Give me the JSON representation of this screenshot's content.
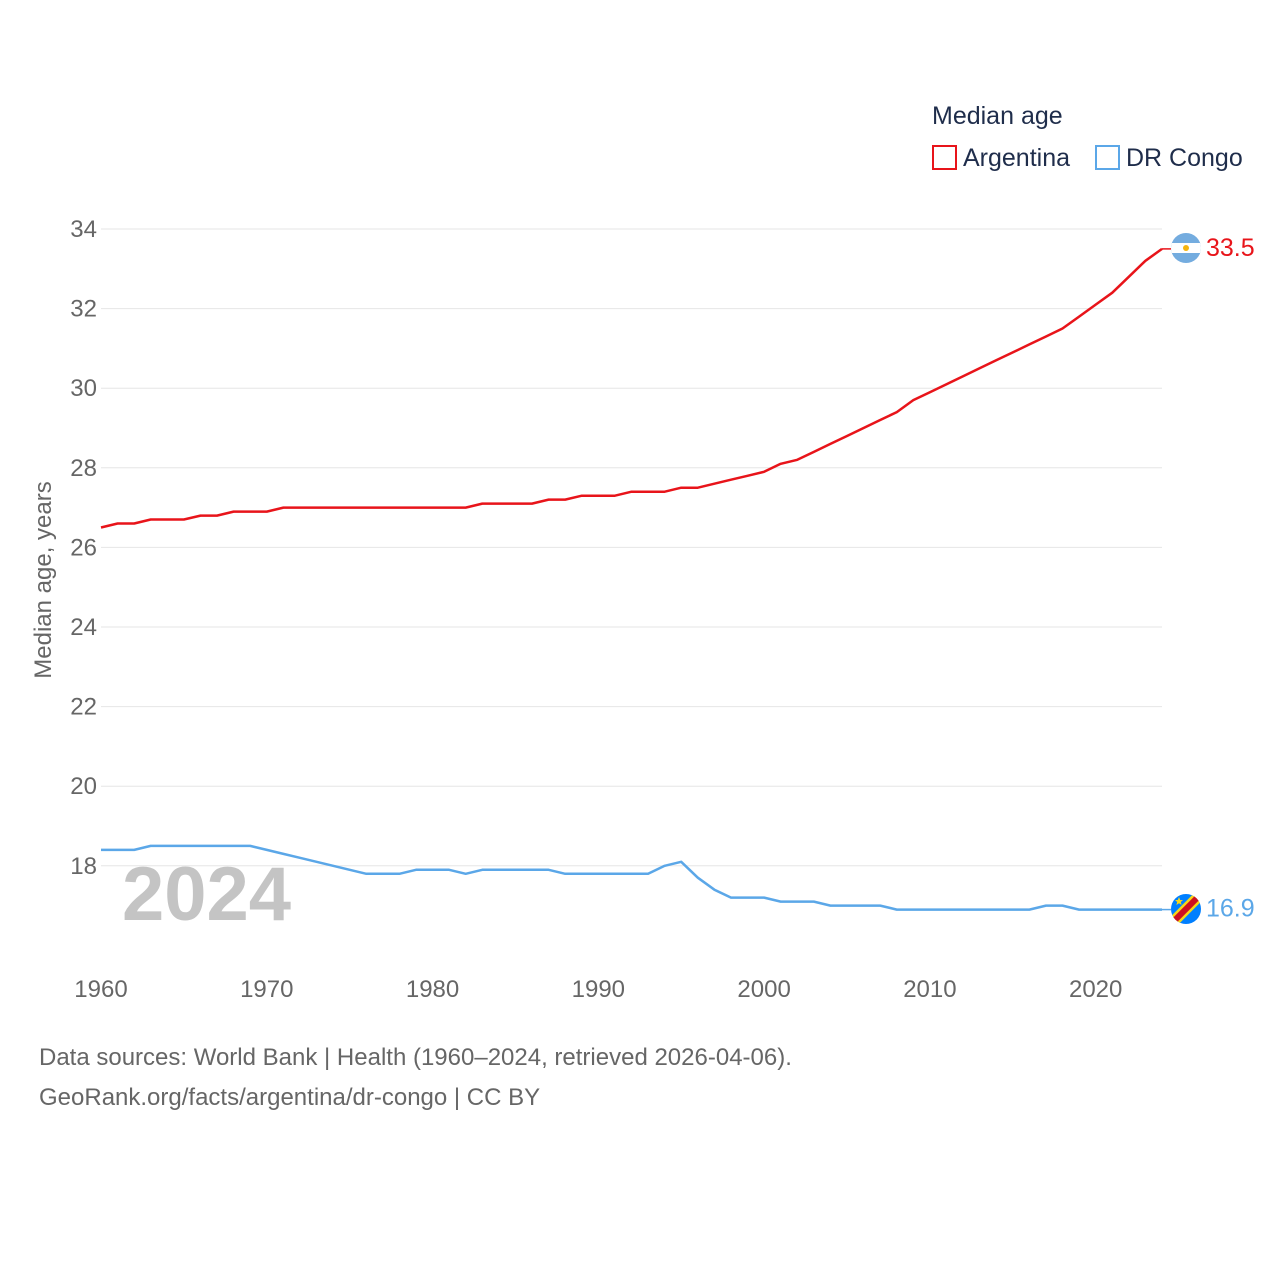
{
  "chart_data": {
    "type": "line",
    "title": "",
    "xlabel": "",
    "ylabel": "Median age, years",
    "legend_title": "Median age",
    "legend_position": "top-right",
    "xlim": [
      1960,
      2024
    ],
    "ylim": [
      16,
      34.5
    ],
    "x_ticks": [
      "1960",
      "1970",
      "1980",
      "1990",
      "2000",
      "2010",
      "2020"
    ],
    "y_ticks": [
      "18",
      "20",
      "22",
      "24",
      "26",
      "28",
      "30",
      "32",
      "34"
    ],
    "year_label": "2024",
    "x": [
      1960,
      1961,
      1962,
      1963,
      1964,
      1965,
      1966,
      1967,
      1968,
      1969,
      1970,
      1971,
      1972,
      1973,
      1974,
      1975,
      1976,
      1977,
      1978,
      1979,
      1980,
      1981,
      1982,
      1983,
      1984,
      1985,
      1986,
      1987,
      1988,
      1989,
      1990,
      1991,
      1992,
      1993,
      1994,
      1995,
      1996,
      1997,
      1998,
      1999,
      2000,
      2001,
      2002,
      2003,
      2004,
      2005,
      2006,
      2007,
      2008,
      2009,
      2010,
      2011,
      2012,
      2013,
      2014,
      2015,
      2016,
      2017,
      2018,
      2019,
      2020,
      2021,
      2022,
      2023,
      2024
    ],
    "series": [
      {
        "name": "Argentina",
        "color": "#e8141a",
        "end_label": "33.5",
        "flag_icon": "argentina-flag-icon",
        "values": [
          26.5,
          26.6,
          26.6,
          26.7,
          26.7,
          26.7,
          26.8,
          26.8,
          26.9,
          26.9,
          26.9,
          27.0,
          27.0,
          27.0,
          27.0,
          27.0,
          27.0,
          27.0,
          27.0,
          27.0,
          27.0,
          27.0,
          27.0,
          27.1,
          27.1,
          27.1,
          27.1,
          27.2,
          27.2,
          27.3,
          27.3,
          27.3,
          27.4,
          27.4,
          27.4,
          27.5,
          27.5,
          27.6,
          27.7,
          27.8,
          27.9,
          28.1,
          28.2,
          28.4,
          28.6,
          28.8,
          29.0,
          29.2,
          29.4,
          29.7,
          29.9,
          30.1,
          30.3,
          30.5,
          30.7,
          30.9,
          31.1,
          31.3,
          31.5,
          31.8,
          32.1,
          32.4,
          32.8,
          33.2,
          33.5
        ]
      },
      {
        "name": "DR Congo",
        "color": "#5ba7e8",
        "end_label": "16.9",
        "flag_icon": "dr-congo-flag-icon",
        "values": [
          18.4,
          18.4,
          18.4,
          18.5,
          18.5,
          18.5,
          18.5,
          18.5,
          18.5,
          18.5,
          18.4,
          18.3,
          18.2,
          18.1,
          18.0,
          17.9,
          17.8,
          17.8,
          17.8,
          17.9,
          17.9,
          17.9,
          17.8,
          17.9,
          17.9,
          17.9,
          17.9,
          17.9,
          17.8,
          17.8,
          17.8,
          17.8,
          17.8,
          17.8,
          18.0,
          18.1,
          17.7,
          17.4,
          17.2,
          17.2,
          17.2,
          17.1,
          17.1,
          17.1,
          17.0,
          17.0,
          17.0,
          17.0,
          16.9,
          16.9,
          16.9,
          16.9,
          16.9,
          16.9,
          16.9,
          16.9,
          16.9,
          17.0,
          17.0,
          16.9,
          16.9,
          16.9,
          16.9,
          16.9,
          16.9
        ]
      }
    ]
  },
  "footer": {
    "source_line": "Data sources: World Bank | Health (1960–2024, retrieved 2026-04-06).",
    "url_line": "GeoRank.org/facts/argentina/dr-congo | CC BY"
  }
}
